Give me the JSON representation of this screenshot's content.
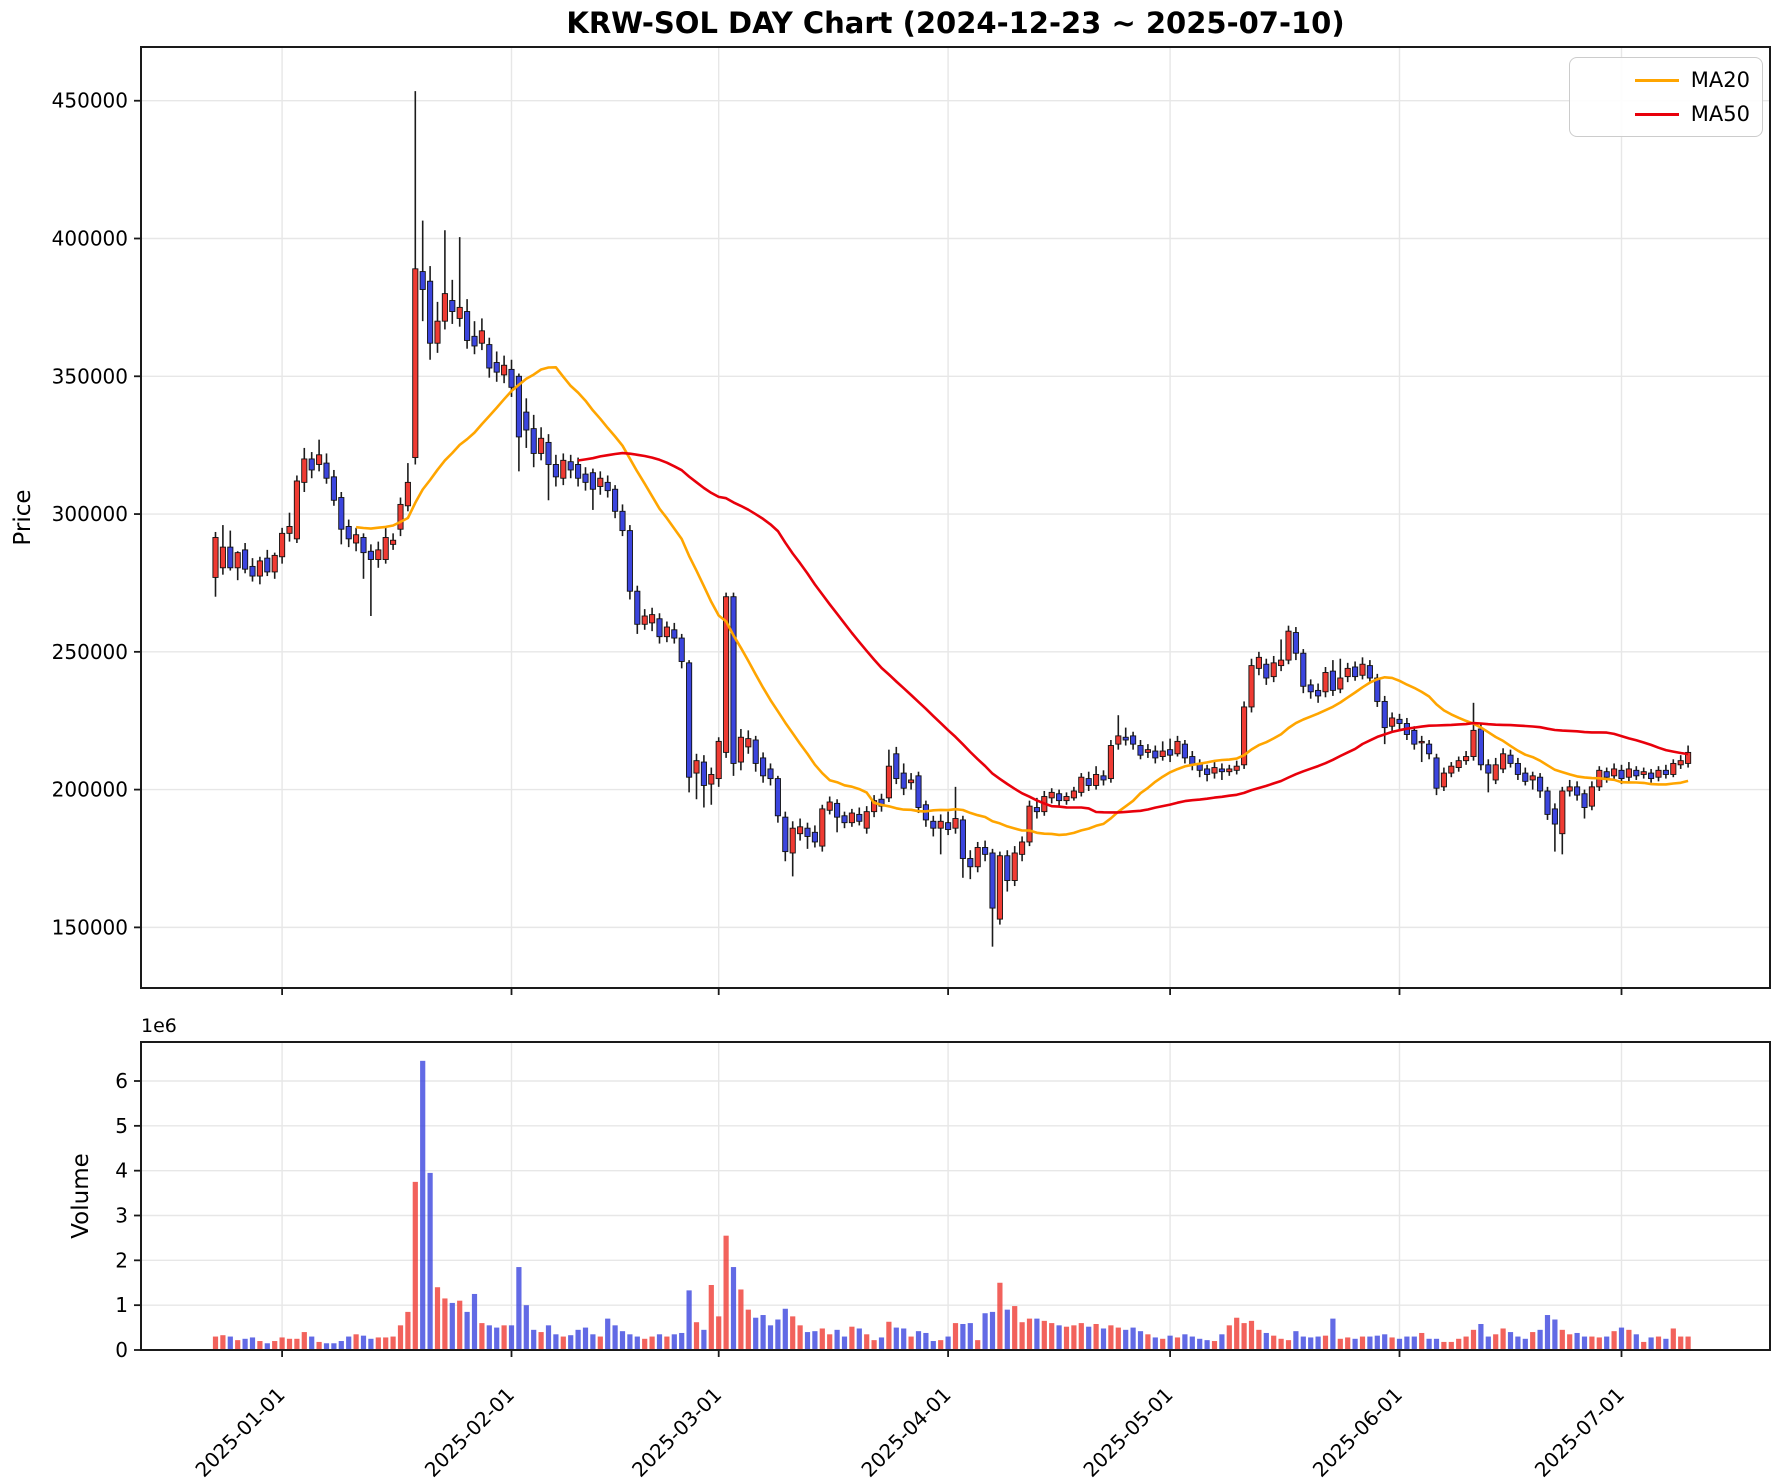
{
  "title": "KRW-SOL DAY Chart (2024-12-23 ~ 2025-07-10)",
  "price_axis": {
    "label": "Price",
    "tick_labels": [
      "150000",
      "200000",
      "250000",
      "300000",
      "350000",
      "400000",
      "450000"
    ],
    "tick_values": [
      150000,
      200000,
      250000,
      300000,
      350000,
      400000,
      450000
    ]
  },
  "volume_axis": {
    "label": "Volume",
    "offset_label": "1e6",
    "tick_labels": [
      "0",
      "1",
      "2",
      "3",
      "4",
      "5",
      "6"
    ],
    "tick_values": [
      0,
      1,
      2,
      3,
      4,
      5,
      6
    ]
  },
  "x_axis": {
    "tick_labels": [
      "2025-01-01",
      "2025-02-01",
      "2025-03-01",
      "2025-04-01",
      "2025-05-01",
      "2025-06-01",
      "2025-07-01"
    ]
  },
  "legend": [
    {
      "label": "MA20",
      "color": "#ffa500"
    },
    {
      "label": "MA50",
      "color": "#e8000b"
    }
  ],
  "colors": {
    "up_candle": "#ef3b33",
    "down_candle": "#3b45de",
    "wick": "#1c1c1c",
    "body_edge": "#111111",
    "grid": "#e7e7e7",
    "spine": "#1a1a1a",
    "text": "#000000",
    "ma20": "#ffa500",
    "ma50": "#e8000b"
  },
  "chart_data": {
    "type": "candlestick",
    "panels": [
      "price",
      "volume"
    ],
    "start_date": "2024-12-23",
    "end_date": "2025-07-10",
    "columns": [
      "open",
      "high",
      "low",
      "close",
      "volume"
    ],
    "price_unit_multiplier": 1000,
    "volume_unit_multiplier": 1000000,
    "moving_averages": [
      {
        "name": "MA20",
        "window": 20
      },
      {
        "name": "MA50",
        "window": 50
      }
    ],
    "price_ylim": [
      128000,
      469500
    ],
    "volume_ylim": [
      0,
      6870000
    ],
    "grid": true,
    "legend_position": "upper right",
    "ohlcv": [
      [
        277.0,
        293.5,
        270.0,
        291.5,
        0.3
      ],
      [
        280.5,
        296.0,
        278.0,
        288.0,
        0.33
      ],
      [
        288.0,
        294.0,
        279.5,
        280.5,
        0.3
      ],
      [
        280.5,
        286.5,
        276.0,
        286.0,
        0.22
      ],
      [
        287.0,
        289.5,
        278.5,
        280.0,
        0.25
      ],
      [
        281.0,
        284.0,
        275.5,
        277.5,
        0.28
      ],
      [
        277.5,
        284.5,
        274.5,
        283.0,
        0.2
      ],
      [
        284.0,
        287.0,
        277.5,
        279.0,
        0.15
      ],
      [
        279.0,
        286.0,
        276.5,
        285.0,
        0.2
      ],
      [
        284.5,
        295.0,
        282.0,
        293.0,
        0.28
      ],
      [
        293.0,
        300.5,
        290.0,
        295.5,
        0.25
      ],
      [
        291.0,
        314.0,
        289.5,
        312.0,
        0.25
      ],
      [
        311.5,
        324.0,
        308.0,
        320.0,
        0.4
      ],
      [
        320.0,
        322.5,
        313.0,
        316.0,
        0.3
      ],
      [
        318.0,
        327.0,
        315.5,
        321.5,
        0.18
      ],
      [
        318.5,
        322.0,
        311.0,
        313.0,
        0.15
      ],
      [
        313.5,
        316.0,
        303.0,
        305.0,
        0.15
      ],
      [
        306.0,
        308.0,
        289.0,
        294.5,
        0.2
      ],
      [
        295.5,
        298.0,
        288.0,
        291.0,
        0.3
      ],
      [
        289.5,
        295.0,
        286.5,
        292.5,
        0.35
      ],
      [
        291.5,
        293.0,
        276.5,
        286.0,
        0.32
      ],
      [
        286.5,
        289.0,
        263.0,
        283.5,
        0.25
      ],
      [
        283.5,
        290.0,
        280.5,
        287.0,
        0.28
      ],
      [
        283.5,
        295.5,
        282.0,
        291.5,
        0.28
      ],
      [
        289.0,
        293.0,
        287.0,
        290.5,
        0.3
      ],
      [
        294.5,
        306.0,
        292.0,
        303.5,
        0.55
      ],
      [
        303.0,
        318.5,
        301.0,
        311.5,
        0.85
      ],
      [
        320.5,
        453.5,
        318.0,
        389.0,
        3.75
      ],
      [
        388.0,
        406.5,
        370.0,
        381.5,
        6.45
      ],
      [
        384.5,
        390.0,
        356.0,
        362.0,
        3.95
      ],
      [
        362.0,
        377.0,
        358.5,
        370.0,
        1.4
      ],
      [
        370.0,
        403.0,
        367.0,
        380.0,
        1.15
      ],
      [
        377.5,
        385.0,
        369.0,
        373.5,
        1.05
      ],
      [
        371.0,
        400.5,
        368.0,
        375.0,
        1.1
      ],
      [
        373.5,
        378.0,
        360.0,
        363.0,
        0.85
      ],
      [
        364.5,
        370.0,
        358.0,
        361.0,
        1.25
      ],
      [
        362.0,
        371.0,
        359.5,
        366.5,
        0.6
      ],
      [
        361.5,
        364.0,
        349.5,
        353.0,
        0.55
      ],
      [
        355.0,
        359.0,
        348.0,
        351.5,
        0.5
      ],
      [
        350.5,
        357.5,
        347.5,
        354.0,
        0.55
      ],
      [
        352.5,
        356.0,
        342.5,
        346.0,
        0.55
      ],
      [
        350.0,
        351.0,
        315.5,
        328.0,
        1.85
      ],
      [
        337.0,
        342.0,
        324.0,
        330.5,
        1.0
      ],
      [
        331.0,
        336.0,
        317.0,
        322.0,
        0.45
      ],
      [
        322.0,
        331.5,
        319.5,
        327.5,
        0.4
      ],
      [
        326.0,
        329.0,
        305.0,
        318.0,
        0.55
      ],
      [
        318.0,
        321.5,
        310.0,
        313.5,
        0.35
      ],
      [
        313.0,
        322.0,
        310.5,
        319.5,
        0.3
      ],
      [
        319.0,
        321.5,
        313.0,
        316.0,
        0.33
      ],
      [
        318.0,
        320.5,
        310.0,
        313.0,
        0.45
      ],
      [
        314.5,
        317.0,
        308.5,
        311.5,
        0.5
      ],
      [
        315.0,
        316.5,
        301.5,
        309.0,
        0.35
      ],
      [
        310.0,
        315.5,
        307.0,
        313.0,
        0.3
      ],
      [
        311.5,
        314.0,
        306.0,
        308.5,
        0.7
      ],
      [
        309.0,
        310.5,
        298.5,
        301.0,
        0.55
      ],
      [
        301.0,
        303.5,
        292.0,
        294.0,
        0.42
      ],
      [
        294.0,
        296.0,
        269.0,
        272.0,
        0.35
      ],
      [
        272.0,
        274.0,
        256.5,
        260.0,
        0.3
      ],
      [
        260.0,
        265.5,
        258.0,
        263.0,
        0.25
      ],
      [
        260.5,
        266.0,
        257.5,
        263.5,
        0.3
      ],
      [
        262.0,
        264.0,
        253.0,
        255.5,
        0.35
      ],
      [
        255.5,
        261.0,
        253.5,
        259.0,
        0.3
      ],
      [
        258.0,
        260.5,
        253.0,
        255.0,
        0.35
      ],
      [
        255.0,
        256.5,
        244.0,
        246.5,
        0.38
      ],
      [
        246.0,
        247.0,
        199.0,
        204.5,
        1.33
      ],
      [
        206.0,
        213.0,
        196.5,
        210.5,
        0.62
      ],
      [
        210.0,
        212.5,
        193.5,
        201.5,
        0.45
      ],
      [
        202.0,
        208.0,
        194.5,
        205.5,
        1.45
      ],
      [
        204.0,
        219.0,
        201.0,
        217.5,
        0.75
      ],
      [
        213.5,
        271.5,
        211.5,
        270.0,
        2.55
      ],
      [
        270.0,
        271.5,
        205.0,
        209.5,
        1.85
      ],
      [
        210.0,
        222.0,
        207.0,
        219.0,
        1.35
      ],
      [
        215.5,
        221.5,
        213.0,
        218.5,
        0.9
      ],
      [
        218.0,
        219.5,
        206.5,
        209.5,
        0.72
      ],
      [
        211.5,
        213.5,
        202.5,
        205.0,
        0.78
      ],
      [
        207.5,
        209.5,
        201.5,
        204.0,
        0.55
      ],
      [
        204.0,
        205.0,
        188.0,
        190.5,
        0.68
      ],
      [
        190.0,
        192.0,
        174.0,
        177.5,
        0.92
      ],
      [
        177.0,
        188.5,
        168.5,
        186.0,
        0.75
      ],
      [
        184.0,
        189.5,
        181.5,
        186.5,
        0.55
      ],
      [
        186.0,
        188.0,
        178.5,
        183.0,
        0.4
      ],
      [
        184.5,
        187.0,
        179.0,
        181.0,
        0.42
      ],
      [
        179.5,
        194.5,
        177.5,
        193.0,
        0.48
      ],
      [
        192.5,
        197.5,
        191.0,
        195.5,
        0.35
      ],
      [
        195.0,
        196.5,
        184.5,
        190.0,
        0.45
      ],
      [
        190.5,
        192.0,
        186.0,
        188.0,
        0.3
      ],
      [
        188.0,
        193.0,
        186.5,
        191.5,
        0.52
      ],
      [
        191.0,
        193.5,
        187.0,
        188.5,
        0.48
      ],
      [
        186.0,
        194.0,
        184.0,
        192.0,
        0.35
      ],
      [
        192.0,
        198.0,
        190.0,
        196.0,
        0.22
      ],
      [
        196.5,
        198.5,
        192.0,
        194.0,
        0.28
      ],
      [
        197.0,
        214.5,
        195.5,
        208.5,
        0.63
      ],
      [
        213.0,
        215.5,
        202.0,
        204.0,
        0.5
      ],
      [
        206.0,
        209.5,
        198.0,
        200.5,
        0.48
      ],
      [
        202.5,
        206.0,
        200.0,
        203.5,
        0.3
      ],
      [
        205.0,
        206.5,
        191.5,
        193.5,
        0.42
      ],
      [
        194.5,
        196.0,
        186.5,
        189.0,
        0.38
      ],
      [
        188.5,
        190.5,
        183.0,
        186.0,
        0.2
      ],
      [
        186.0,
        191.0,
        176.5,
        188.5,
        0.22
      ],
      [
        188.0,
        192.0,
        183.5,
        185.5,
        0.3
      ],
      [
        186.0,
        201.0,
        184.0,
        189.5,
        0.6
      ],
      [
        189.0,
        190.5,
        168.0,
        175.0,
        0.58
      ],
      [
        175.0,
        178.0,
        167.5,
        172.0,
        0.6
      ],
      [
        172.0,
        181.0,
        170.0,
        179.0,
        0.22
      ],
      [
        179.0,
        181.5,
        174.0,
        176.5,
        0.82
      ],
      [
        177.0,
        178.5,
        143.0,
        157.0,
        0.85
      ],
      [
        153.0,
        177.5,
        151.0,
        176.0,
        1.5
      ],
      [
        176.0,
        178.0,
        163.0,
        167.0,
        0.9
      ],
      [
        167.0,
        179.5,
        165.0,
        177.0,
        0.98
      ],
      [
        176.5,
        183.0,
        174.0,
        181.0,
        0.62
      ],
      [
        181.0,
        196.0,
        179.5,
        194.0,
        0.7
      ],
      [
        193.5,
        197.0,
        189.5,
        192.0,
        0.7
      ],
      [
        192.0,
        199.5,
        190.5,
        197.5,
        0.65
      ],
      [
        197.0,
        200.5,
        195.0,
        199.0,
        0.6
      ],
      [
        198.5,
        200.0,
        193.5,
        196.0,
        0.55
      ],
      [
        196.0,
        199.0,
        194.5,
        197.5,
        0.52
      ],
      [
        197.0,
        201.0,
        196.0,
        199.5,
        0.55
      ],
      [
        199.0,
        206.0,
        197.5,
        204.5,
        0.6
      ],
      [
        204.0,
        206.5,
        199.5,
        201.5,
        0.52
      ],
      [
        201.5,
        208.5,
        200.0,
        205.5,
        0.58
      ],
      [
        205.0,
        207.0,
        201.5,
        203.5,
        0.48
      ],
      [
        204.0,
        218.0,
        202.5,
        216.0,
        0.55
      ],
      [
        216.5,
        227.0,
        214.5,
        219.5,
        0.5
      ],
      [
        219.0,
        222.5,
        216.0,
        218.0,
        0.45
      ],
      [
        219.5,
        221.0,
        214.5,
        216.5,
        0.5
      ],
      [
        216.0,
        218.0,
        211.0,
        212.5,
        0.42
      ],
      [
        213.5,
        216.5,
        211.5,
        214.5,
        0.35
      ],
      [
        214.0,
        216.0,
        209.5,
        211.5,
        0.28
      ],
      [
        212.0,
        217.5,
        210.5,
        214.0,
        0.25
      ],
      [
        214.5,
        218.5,
        210.0,
        212.5,
        0.32
      ],
      [
        213.0,
        219.5,
        212.0,
        217.5,
        0.28
      ],
      [
        216.5,
        218.0,
        209.5,
        211.5,
        0.35
      ],
      [
        212.0,
        214.0,
        207.0,
        209.0,
        0.3
      ],
      [
        209.5,
        211.0,
        204.5,
        207.0,
        0.25
      ],
      [
        207.5,
        209.0,
        203.0,
        205.5,
        0.22
      ],
      [
        206.0,
        210.0,
        204.0,
        208.0,
        0.2
      ],
      [
        207.5,
        209.5,
        203.5,
        206.5,
        0.35
      ],
      [
        206.5,
        209.0,
        205.0,
        207.5,
        0.55
      ],
      [
        207.0,
        210.5,
        205.5,
        208.5,
        0.72
      ],
      [
        209.0,
        232.0,
        207.5,
        230.0,
        0.6
      ],
      [
        230.0,
        247.5,
        228.0,
        245.0,
        0.65
      ],
      [
        244.0,
        250.0,
        241.5,
        248.0,
        0.45
      ],
      [
        245.5,
        247.5,
        238.0,
        240.5,
        0.38
      ],
      [
        241.0,
        248.5,
        239.0,
        246.0,
        0.32
      ],
      [
        245.0,
        254.5,
        243.0,
        247.0,
        0.25
      ],
      [
        247.0,
        259.5,
        245.5,
        257.5,
        0.22
      ],
      [
        257.0,
        259.0,
        247.0,
        249.5,
        0.42
      ],
      [
        249.5,
        251.0,
        235.0,
        237.5,
        0.3
      ],
      [
        238.0,
        240.0,
        233.0,
        235.5,
        0.28
      ],
      [
        236.0,
        238.5,
        231.5,
        234.0,
        0.3
      ],
      [
        235.5,
        244.5,
        233.5,
        242.5,
        0.32
      ],
      [
        243.0,
        247.0,
        234.0,
        236.0,
        0.7
      ],
      [
        236.5,
        247.5,
        235.0,
        240.5,
        0.25
      ],
      [
        241.0,
        246.0,
        239.0,
        244.0,
        0.28
      ],
      [
        244.5,
        246.5,
        239.5,
        241.0,
        0.25
      ],
      [
        241.5,
        248.0,
        240.0,
        245.5,
        0.3
      ],
      [
        245.0,
        247.0,
        238.5,
        240.5,
        0.3
      ],
      [
        240.5,
        242.0,
        230.0,
        232.0,
        0.32
      ],
      [
        232.0,
        234.0,
        216.5,
        222.5,
        0.35
      ],
      [
        223.0,
        228.0,
        221.0,
        226.0,
        0.28
      ],
      [
        225.5,
        227.5,
        222.0,
        224.0,
        0.25
      ],
      [
        224.0,
        226.0,
        218.0,
        220.0,
        0.3
      ],
      [
        221.5,
        223.0,
        214.5,
        216.5,
        0.3
      ],
      [
        217.0,
        219.5,
        210.0,
        217.5,
        0.38
      ],
      [
        216.5,
        218.0,
        211.0,
        213.0,
        0.25
      ],
      [
        211.5,
        213.0,
        198.0,
        200.5,
        0.25
      ],
      [
        201.0,
        208.0,
        199.5,
        206.0,
        0.18
      ],
      [
        206.0,
        210.0,
        204.5,
        208.5,
        0.18
      ],
      [
        208.0,
        212.0,
        206.5,
        210.5,
        0.25
      ],
      [
        210.5,
        214.0,
        209.0,
        212.0,
        0.3
      ],
      [
        212.0,
        231.5,
        210.5,
        221.5,
        0.45
      ],
      [
        222.0,
        224.0,
        207.0,
        209.0,
        0.58
      ],
      [
        209.0,
        211.0,
        199.0,
        206.0,
        0.3
      ],
      [
        203.5,
        211.5,
        202.0,
        209.0,
        0.35
      ],
      [
        207.5,
        215.0,
        206.0,
        213.0,
        0.48
      ],
      [
        212.5,
        214.5,
        208.0,
        209.5,
        0.4
      ],
      [
        209.5,
        211.5,
        203.5,
        205.5,
        0.3
      ],
      [
        206.0,
        208.0,
        201.5,
        203.0,
        0.25
      ],
      [
        203.5,
        206.5,
        200.0,
        205.0,
        0.4
      ],
      [
        204.5,
        206.0,
        197.0,
        199.5,
        0.45
      ],
      [
        199.5,
        201.0,
        189.0,
        191.0,
        0.78
      ],
      [
        193.0,
        195.0,
        177.5,
        187.5,
        0.68
      ],
      [
        184.0,
        201.0,
        176.5,
        199.5,
        0.45
      ],
      [
        199.5,
        203.5,
        197.5,
        201.0,
        0.35
      ],
      [
        201.0,
        203.0,
        196.0,
        198.0,
        0.38
      ],
      [
        198.5,
        200.0,
        189.5,
        193.5,
        0.3
      ],
      [
        194.0,
        203.0,
        192.5,
        201.0,
        0.3
      ],
      [
        201.0,
        208.5,
        199.5,
        207.0,
        0.28
      ],
      [
        206.5,
        208.0,
        202.5,
        204.5,
        0.3
      ],
      [
        205.0,
        209.5,
        203.5,
        207.5,
        0.42
      ],
      [
        207.0,
        209.0,
        202.0,
        204.0,
        0.5
      ],
      [
        204.5,
        210.0,
        203.0,
        207.5,
        0.45
      ],
      [
        207.0,
        208.5,
        203.5,
        205.0,
        0.35
      ],
      [
        205.5,
        208.0,
        204.0,
        206.5,
        0.18
      ],
      [
        206.0,
        207.5,
        202.5,
        204.0,
        0.28
      ],
      [
        204.5,
        208.5,
        203.0,
        207.0,
        0.3
      ],
      [
        207.0,
        209.0,
        204.0,
        205.5,
        0.25
      ],
      [
        205.5,
        211.0,
        204.5,
        209.5,
        0.48
      ],
      [
        209.0,
        212.5,
        207.5,
        210.5,
        0.3
      ],
      [
        209.5,
        216.0,
        208.0,
        213.5,
        0.3
      ]
    ]
  }
}
